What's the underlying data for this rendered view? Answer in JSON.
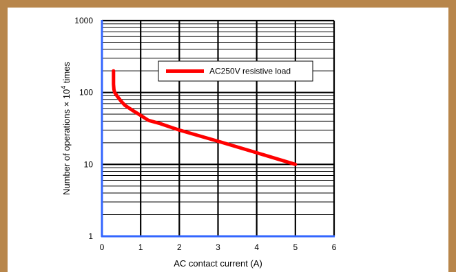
{
  "chart_data": {
    "type": "line",
    "title": "",
    "xlabel": "AC contact current (A)",
    "ylabel": {
      "prefix": "Number of operations × 10",
      "superscript": "4",
      "suffix": " times"
    },
    "xlim": [
      0,
      6
    ],
    "ylim": [
      1,
      1000
    ],
    "y_scale": "log",
    "grid": true,
    "x_ticks": [
      "0",
      "1",
      "2",
      "3",
      "4",
      "5",
      "6"
    ],
    "y_ticks": [
      "1",
      "10",
      "100",
      "1000"
    ],
    "legend_position": "top-right",
    "series": [
      {
        "name": "AC250V resistive load",
        "color": "#ff0000",
        "x": [
          0.3,
          0.3,
          0.31,
          0.33,
          0.4,
          0.5,
          0.6,
          0.8,
          1.0,
          1.2,
          1.5,
          2.0,
          3.0,
          4.0,
          5.0
        ],
        "y": [
          200,
          130,
          110,
          100,
          88,
          75,
          66,
          56,
          48,
          41,
          37,
          30,
          21,
          14.5,
          10
        ]
      }
    ]
  },
  "colors": {
    "frame": "#b8864b",
    "axis": "#3366ff",
    "grid": "#000000"
  }
}
